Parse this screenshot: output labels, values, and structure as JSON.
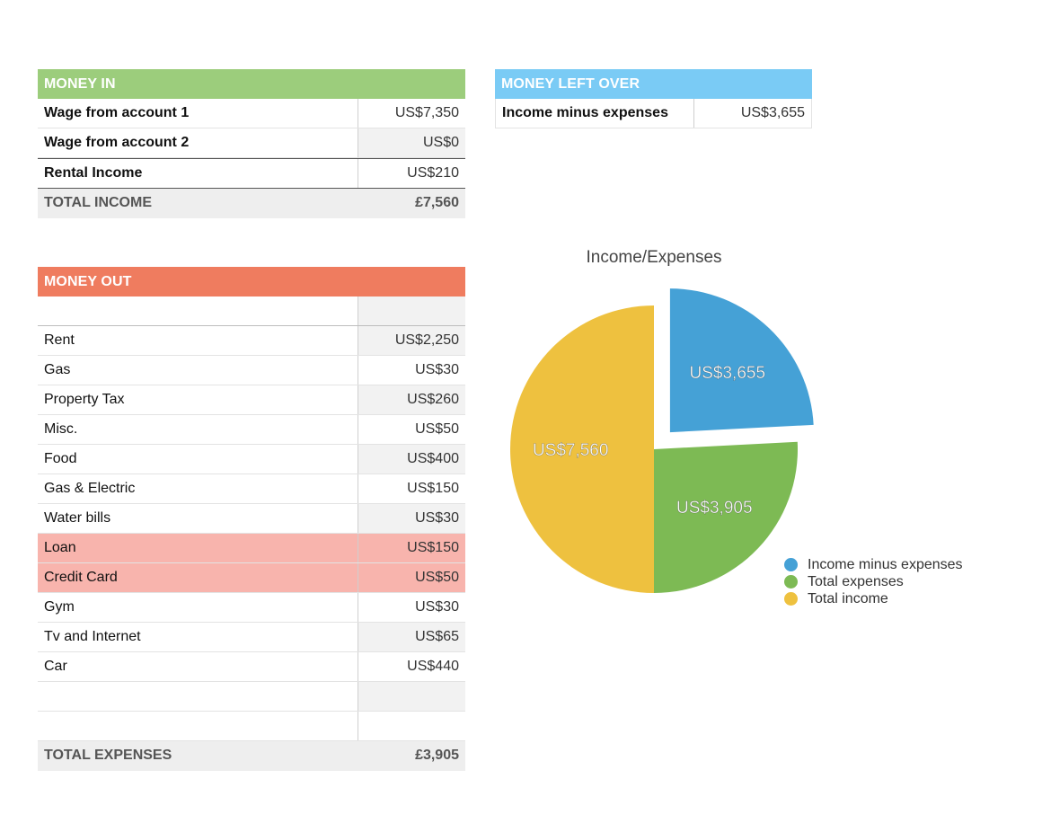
{
  "money_in": {
    "header": "MONEY IN",
    "header_color": "#9ccd7c",
    "rows": [
      {
        "label": "Wage from account 1",
        "value": "US$7,350"
      },
      {
        "label": "Wage from account 2",
        "value": "US$0"
      },
      {
        "label": "Rental Income",
        "value": "US$210"
      }
    ],
    "total_label": "TOTAL INCOME",
    "total_value": "£7,560"
  },
  "money_left": {
    "header": "MONEY LEFT OVER",
    "header_color": "#7acbf5",
    "label": "Income minus expenses",
    "value": "US$3,655"
  },
  "money_out": {
    "header": "MONEY OUT",
    "header_color": "#ef7c5f",
    "highlight_color": "#f8b4ad",
    "rows": [
      {
        "label": "",
        "value": ""
      },
      {
        "label": "Rent",
        "value": "US$2,250"
      },
      {
        "label": "Gas",
        "value": "US$30"
      },
      {
        "label": "Property Tax",
        "value": "US$260"
      },
      {
        "label": "Misc.",
        "value": "US$50"
      },
      {
        "label": "Food",
        "value": "US$400"
      },
      {
        "label": "Gas & Electric",
        "value": "US$150"
      },
      {
        "label": "Water bills",
        "value": "US$30"
      },
      {
        "label": "Loan",
        "value": "US$150"
      },
      {
        "label": "Credit Card",
        "value": "US$50"
      },
      {
        "label": "Gym",
        "value": "US$30"
      },
      {
        "label": "Tv and Internet",
        "value": "US$65"
      },
      {
        "label": "Car",
        "value": "US$440"
      },
      {
        "label": "",
        "value": ""
      },
      {
        "label": "",
        "value": ""
      }
    ],
    "total_label": "TOTAL EXPENSES",
    "total_value": "£3,905"
  },
  "chart_data": {
    "type": "pie",
    "title": "Income/Expenses",
    "slices": [
      {
        "name": "Income minus expenses",
        "value": 3655,
        "label": "US$3,655",
        "color": "#45a1d6",
        "exploded": true
      },
      {
        "name": "Total expenses",
        "value": 3905,
        "label": "US$3,905",
        "color": "#7dba54",
        "exploded": false
      },
      {
        "name": "Total income",
        "value": 7560,
        "label": "US$7,560",
        "color": "#eec13f",
        "exploded": false
      }
    ],
    "legend": "right"
  }
}
